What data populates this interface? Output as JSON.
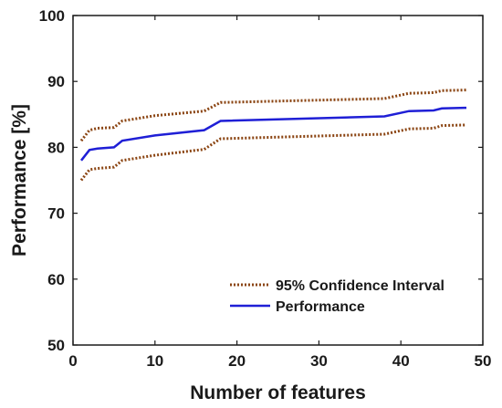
{
  "chart_data": {
    "type": "line",
    "xlabel": "Number of features",
    "ylabel": "Performance [%]",
    "xlim": [
      0,
      50
    ],
    "ylim": [
      50,
      100
    ],
    "xticks": [
      0,
      10,
      20,
      30,
      40,
      50
    ],
    "yticks": [
      50,
      60,
      70,
      80,
      90,
      100
    ],
    "grid": false,
    "legend_position": "bottom-right",
    "series": [
      {
        "name": "95% Confidence Interval",
        "style": "dotted",
        "color": "#8B4513",
        "upper": [
          {
            "x": 1,
            "y": 81.0
          },
          {
            "x": 2,
            "y": 82.6
          },
          {
            "x": 3,
            "y": 82.9
          },
          {
            "x": 5,
            "y": 83.0
          },
          {
            "x": 6,
            "y": 84.0
          },
          {
            "x": 10,
            "y": 84.8
          },
          {
            "x": 16,
            "y": 85.5
          },
          {
            "x": 18,
            "y": 86.8
          },
          {
            "x": 38,
            "y": 87.4
          },
          {
            "x": 41,
            "y": 88.2
          },
          {
            "x": 44,
            "y": 88.3
          },
          {
            "x": 45,
            "y": 88.6
          },
          {
            "x": 48,
            "y": 88.7
          }
        ],
        "lower": [
          {
            "x": 1,
            "y": 75.0
          },
          {
            "x": 2,
            "y": 76.6
          },
          {
            "x": 3,
            "y": 76.8
          },
          {
            "x": 5,
            "y": 77.0
          },
          {
            "x": 6,
            "y": 78.0
          },
          {
            "x": 10,
            "y": 78.8
          },
          {
            "x": 16,
            "y": 79.7
          },
          {
            "x": 18,
            "y": 81.3
          },
          {
            "x": 38,
            "y": 82.0
          },
          {
            "x": 41,
            "y": 82.8
          },
          {
            "x": 44,
            "y": 82.9
          },
          {
            "x": 45,
            "y": 83.3
          },
          {
            "x": 48,
            "y": 83.4
          }
        ]
      },
      {
        "name": "Performance",
        "style": "solid",
        "color": "#1f1fd6",
        "points": [
          {
            "x": 1,
            "y": 78.0
          },
          {
            "x": 2,
            "y": 79.6
          },
          {
            "x": 3,
            "y": 79.8
          },
          {
            "x": 5,
            "y": 80.0
          },
          {
            "x": 6,
            "y": 81.0
          },
          {
            "x": 10,
            "y": 81.8
          },
          {
            "x": 16,
            "y": 82.6
          },
          {
            "x": 18,
            "y": 84.0
          },
          {
            "x": 38,
            "y": 84.7
          },
          {
            "x": 41,
            "y": 85.5
          },
          {
            "x": 44,
            "y": 85.6
          },
          {
            "x": 45,
            "y": 85.9
          },
          {
            "x": 48,
            "y": 86.0
          }
        ]
      }
    ]
  }
}
